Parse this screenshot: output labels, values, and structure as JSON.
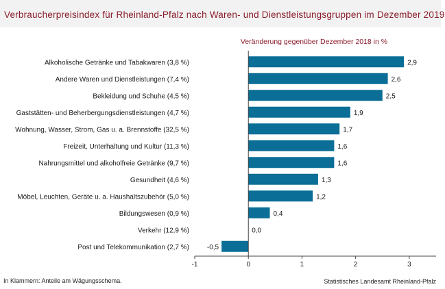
{
  "title": "Verbraucherpreisindex für Rheinland-Pfalz nach Waren- und Dienstleistungsgruppen im Dezember 2019",
  "footnote": "In Klammern: Anteile am Wägungsschema.",
  "source": "Statistisches Landesamt Rheinland-Pfalz",
  "colors": {
    "bar": "#0a6e96",
    "title": "#8a1c2b",
    "subtitle": "#8a1c2b",
    "axis": "#444444",
    "band": "#f2f2f2"
  },
  "chart_data": {
    "type": "bar",
    "orientation": "horizontal",
    "subtitle": "Veränderung gegenüber Dezember 2018 in %",
    "categories": [
      "Alkoholische Getränke und Tabakwaren (3,8 %)",
      "Andere Waren und Dienstleistungen (7,4 %)",
      "Bekleidung und Schuhe (4,5 %)",
      "Gaststätten- und Beherbergungsdienstleistungen (4,7 %)",
      "Wohnung, Wasser, Strom, Gas u. a. Brennstoffe (32,5 %)",
      "Freizeit, Unterhaltung und Kultur (11,3 %)",
      "Nahrungsmittel und alkoholfreie Getränke (9,7 %)",
      "Gesundheit (4,6 %)",
      "Möbel, Leuchten, Geräte u. a. Haushaltszubehör (5,0 %)",
      "Bildungswesen (0,9 %)",
      "Verkehr (12,9 %)",
      "Post und Telekommunikation (2,7 %)"
    ],
    "values": [
      2.9,
      2.6,
      2.5,
      1.9,
      1.7,
      1.6,
      1.6,
      1.3,
      1.2,
      0.4,
      0.0,
      -0.5
    ],
    "value_labels": [
      "2,9",
      "2,6",
      "2,5",
      "1,9",
      "1,7",
      "1,6",
      "1,6",
      "1,3",
      "1,2",
      "0,4",
      "0,0",
      "-0,5"
    ],
    "xlim": [
      -1,
      3.5
    ],
    "xticks": [
      -1,
      0,
      1,
      2,
      3
    ],
    "xtick_labels": [
      "-1",
      "0",
      "1",
      "2",
      "3"
    ],
    "grid": false,
    "legend": "none"
  }
}
